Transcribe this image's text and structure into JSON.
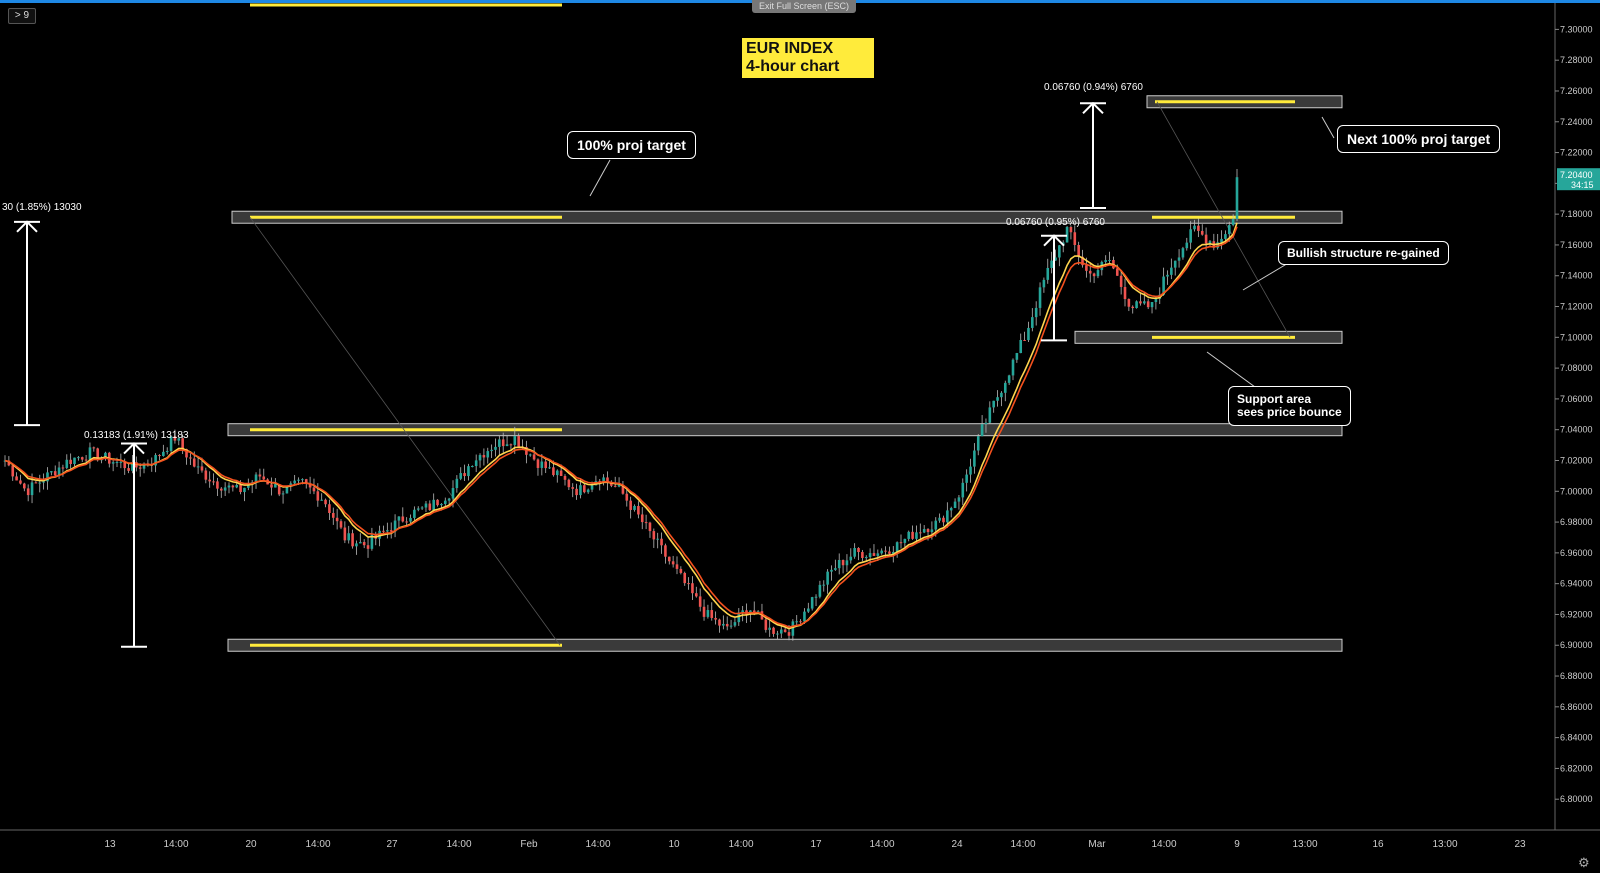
{
  "toolbar": {
    "timeframe_label": "> 9",
    "exit_label": "Exit Full Screen (ESC)"
  },
  "title": {
    "line1": "EUR INDEX",
    "line2": "4-hour chart"
  },
  "colors": {
    "up": "#26a69a",
    "down": "#ef5350",
    "ema_fast": "#ffd54f",
    "ema_slow": "#f4511e",
    "band_fill": "#3a3a3a",
    "band_line": "#ffeb3b",
    "price_badge": "#26a69a"
  },
  "callouts": {
    "proj_target": "100% proj target",
    "next_proj_target": "Next 100% proj target",
    "bullish": "Bullish structure re-gained",
    "support_line1": "Support area",
    "support_line2": "sees price bounce"
  },
  "measures": {
    "m1": "30 (1.85%) 13030",
    "m2": "0.13183 (1.91%) 13183",
    "m3": "0.06760 (0.95%) 6760",
    "m4": "0.06760 (0.94%) 6760"
  },
  "price_badge": {
    "price": "7.20400",
    "countdown": "34:15"
  },
  "chart_data": {
    "type": "candlestick",
    "y_axis": {
      "min": 6.78,
      "max": 7.31,
      "tick_step": 0.02,
      "decimals": 5,
      "position": "right"
    },
    "x_ticks": [
      "13",
      "14:00",
      "20",
      "14:00",
      "27",
      "14:00",
      "Feb",
      "14:00",
      "10",
      "14:00",
      "17",
      "14:00",
      "24",
      "14:00",
      "Mar",
      "14:00",
      "9",
      "13:00",
      "16",
      "13:00",
      "23"
    ],
    "horizontal_levels": [
      6.9,
      7.04,
      7.1,
      7.178,
      7.253
    ],
    "ohlc_path": [
      [
        7.02,
        7.01
      ],
      [
        7.0,
        6.995
      ],
      [
        7.01,
        7.0
      ],
      [
        7.02,
        7.015
      ],
      [
        7.025,
        7.03
      ],
      [
        7.02,
        7.01
      ],
      [
        7.015,
        7.015
      ],
      [
        7.02,
        7.03
      ],
      [
        7.035,
        7.02
      ],
      [
        7.015,
        7.02
      ],
      [
        7.005,
        7.0
      ],
      [
        7.0,
        7.005
      ],
      [
        7.01,
        7.005
      ],
      [
        7.0,
        6.995
      ],
      [
        7.005,
        7.01
      ],
      [
        6.995,
        6.98
      ],
      [
        6.97,
        6.975
      ],
      [
        6.965,
        6.97
      ],
      [
        6.975,
        6.98
      ],
      [
        6.985,
        6.98
      ],
      [
        6.99,
        6.995
      ],
      [
        7.0,
        7.01
      ],
      [
        7.02,
        7.025
      ],
      [
        7.03,
        7.035
      ],
      [
        7.035,
        7.03
      ],
      [
        7.02,
        7.015
      ],
      [
        7.01,
        7.005
      ],
      [
        7.0,
        7.005
      ],
      [
        7.01,
        7.005
      ],
      [
        7.0,
        6.995
      ],
      [
        6.98,
        6.97
      ],
      [
        6.96,
        6.95
      ],
      [
        6.94,
        6.93
      ],
      [
        6.92,
        6.915
      ],
      [
        6.91,
        6.92
      ],
      [
        6.925,
        6.915
      ],
      [
        6.91,
        6.905
      ],
      [
        6.91,
        6.92
      ],
      [
        6.93,
        6.945
      ],
      [
        6.95,
        6.955
      ],
      [
        6.96,
        6.955
      ],
      [
        6.96,
        6.965
      ],
      [
        6.965,
        6.97
      ],
      [
        6.975,
        6.97
      ],
      [
        6.98,
        6.99
      ],
      [
        7.0,
        7.02
      ],
      [
        7.04,
        7.06
      ],
      [
        7.07,
        7.09
      ],
      [
        7.1,
        7.13
      ],
      [
        7.14,
        7.16
      ],
      [
        7.17,
        7.15
      ],
      [
        7.14,
        7.15
      ],
      [
        7.15,
        7.13
      ],
      [
        7.12,
        7.11
      ],
      [
        7.12,
        7.14
      ],
      [
        7.15,
        7.16
      ],
      [
        7.17,
        7.18
      ],
      [
        7.16,
        7.145
      ],
      [
        7.18,
        7.204
      ]
    ]
  }
}
